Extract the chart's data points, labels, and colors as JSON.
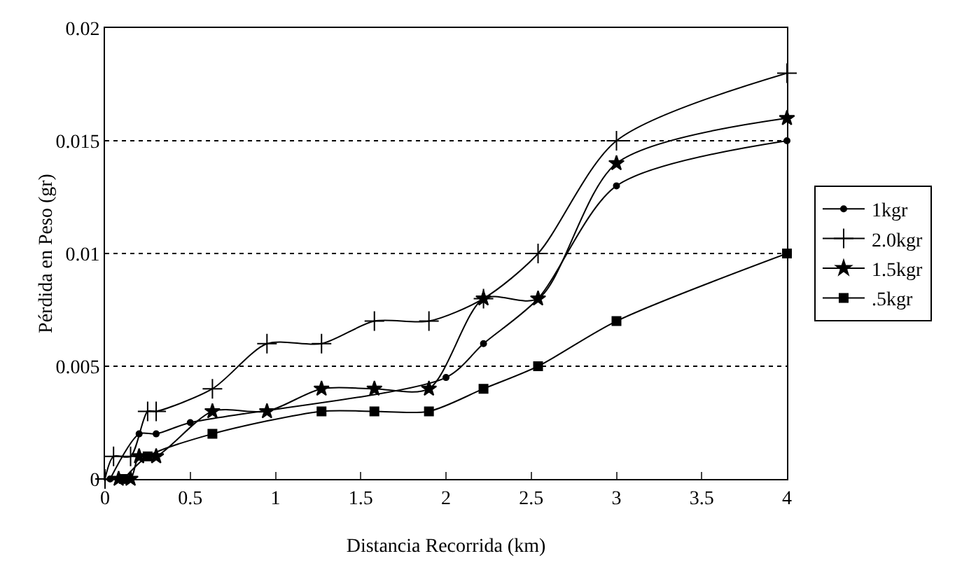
{
  "chart_data": {
    "type": "line",
    "xlabel": "Distancia Recorrida (km)",
    "ylabel": "Pérdida en Peso (gr)",
    "xlim": [
      0,
      4
    ],
    "xticks": [
      0,
      0.5,
      1,
      1.5,
      2,
      2.5,
      3,
      3.5,
      4
    ],
    "ylim": [
      0,
      0.02
    ],
    "yticks": [
      0,
      0.005,
      0.01,
      0.015,
      0.02
    ],
    "grid": "y",
    "legend": "right",
    "line_style": "solid",
    "series": [
      {
        "name": "1kgr",
        "color": "#000000",
        "marker": "circle",
        "x": [
          0.03,
          0.2,
          0.3,
          0.5,
          2.0,
          2.22,
          2.54,
          3.0,
          4.0
        ],
        "values": [
          0,
          0.002,
          0.002,
          0.0025,
          0.0045,
          0.006,
          0.008,
          0.013,
          0.015
        ]
      },
      {
        "name": "2.0kgr",
        "color": "#000000",
        "marker": "cross",
        "x": [
          0,
          0.05,
          0.15,
          0.25,
          0.3,
          0.63,
          0.95,
          1.27,
          1.58,
          1.9,
          2.22,
          2.54,
          3.0,
          4.0
        ],
        "values": [
          0,
          0.001,
          0.001,
          0.003,
          0.003,
          0.004,
          0.006,
          0.006,
          0.007,
          0.007,
          0.008,
          0.01,
          0.015,
          0.018
        ]
      },
      {
        "name": "1.5kgr",
        "color": "#000000",
        "marker": "star",
        "x": [
          0.08,
          0.15,
          0.2,
          0.3,
          0.63,
          0.95,
          1.27,
          1.58,
          1.9,
          2.22,
          2.54,
          3.0,
          4.0
        ],
        "values": [
          0,
          0,
          0.001,
          0.001,
          0.003,
          0.003,
          0.004,
          0.004,
          0.004,
          0.008,
          0.008,
          0.014,
          0.016
        ]
      },
      {
        "name": ".5kgr",
        "color": "#000000",
        "marker": "square",
        "x": [
          0.11,
          0.25,
          0.63,
          1.27,
          1.58,
          1.9,
          2.22,
          2.54,
          3.0,
          4.0
        ],
        "values": [
          0,
          0.001,
          0.002,
          0.003,
          0.003,
          0.003,
          0.004,
          0.005,
          0.007,
          0.01
        ]
      }
    ]
  }
}
